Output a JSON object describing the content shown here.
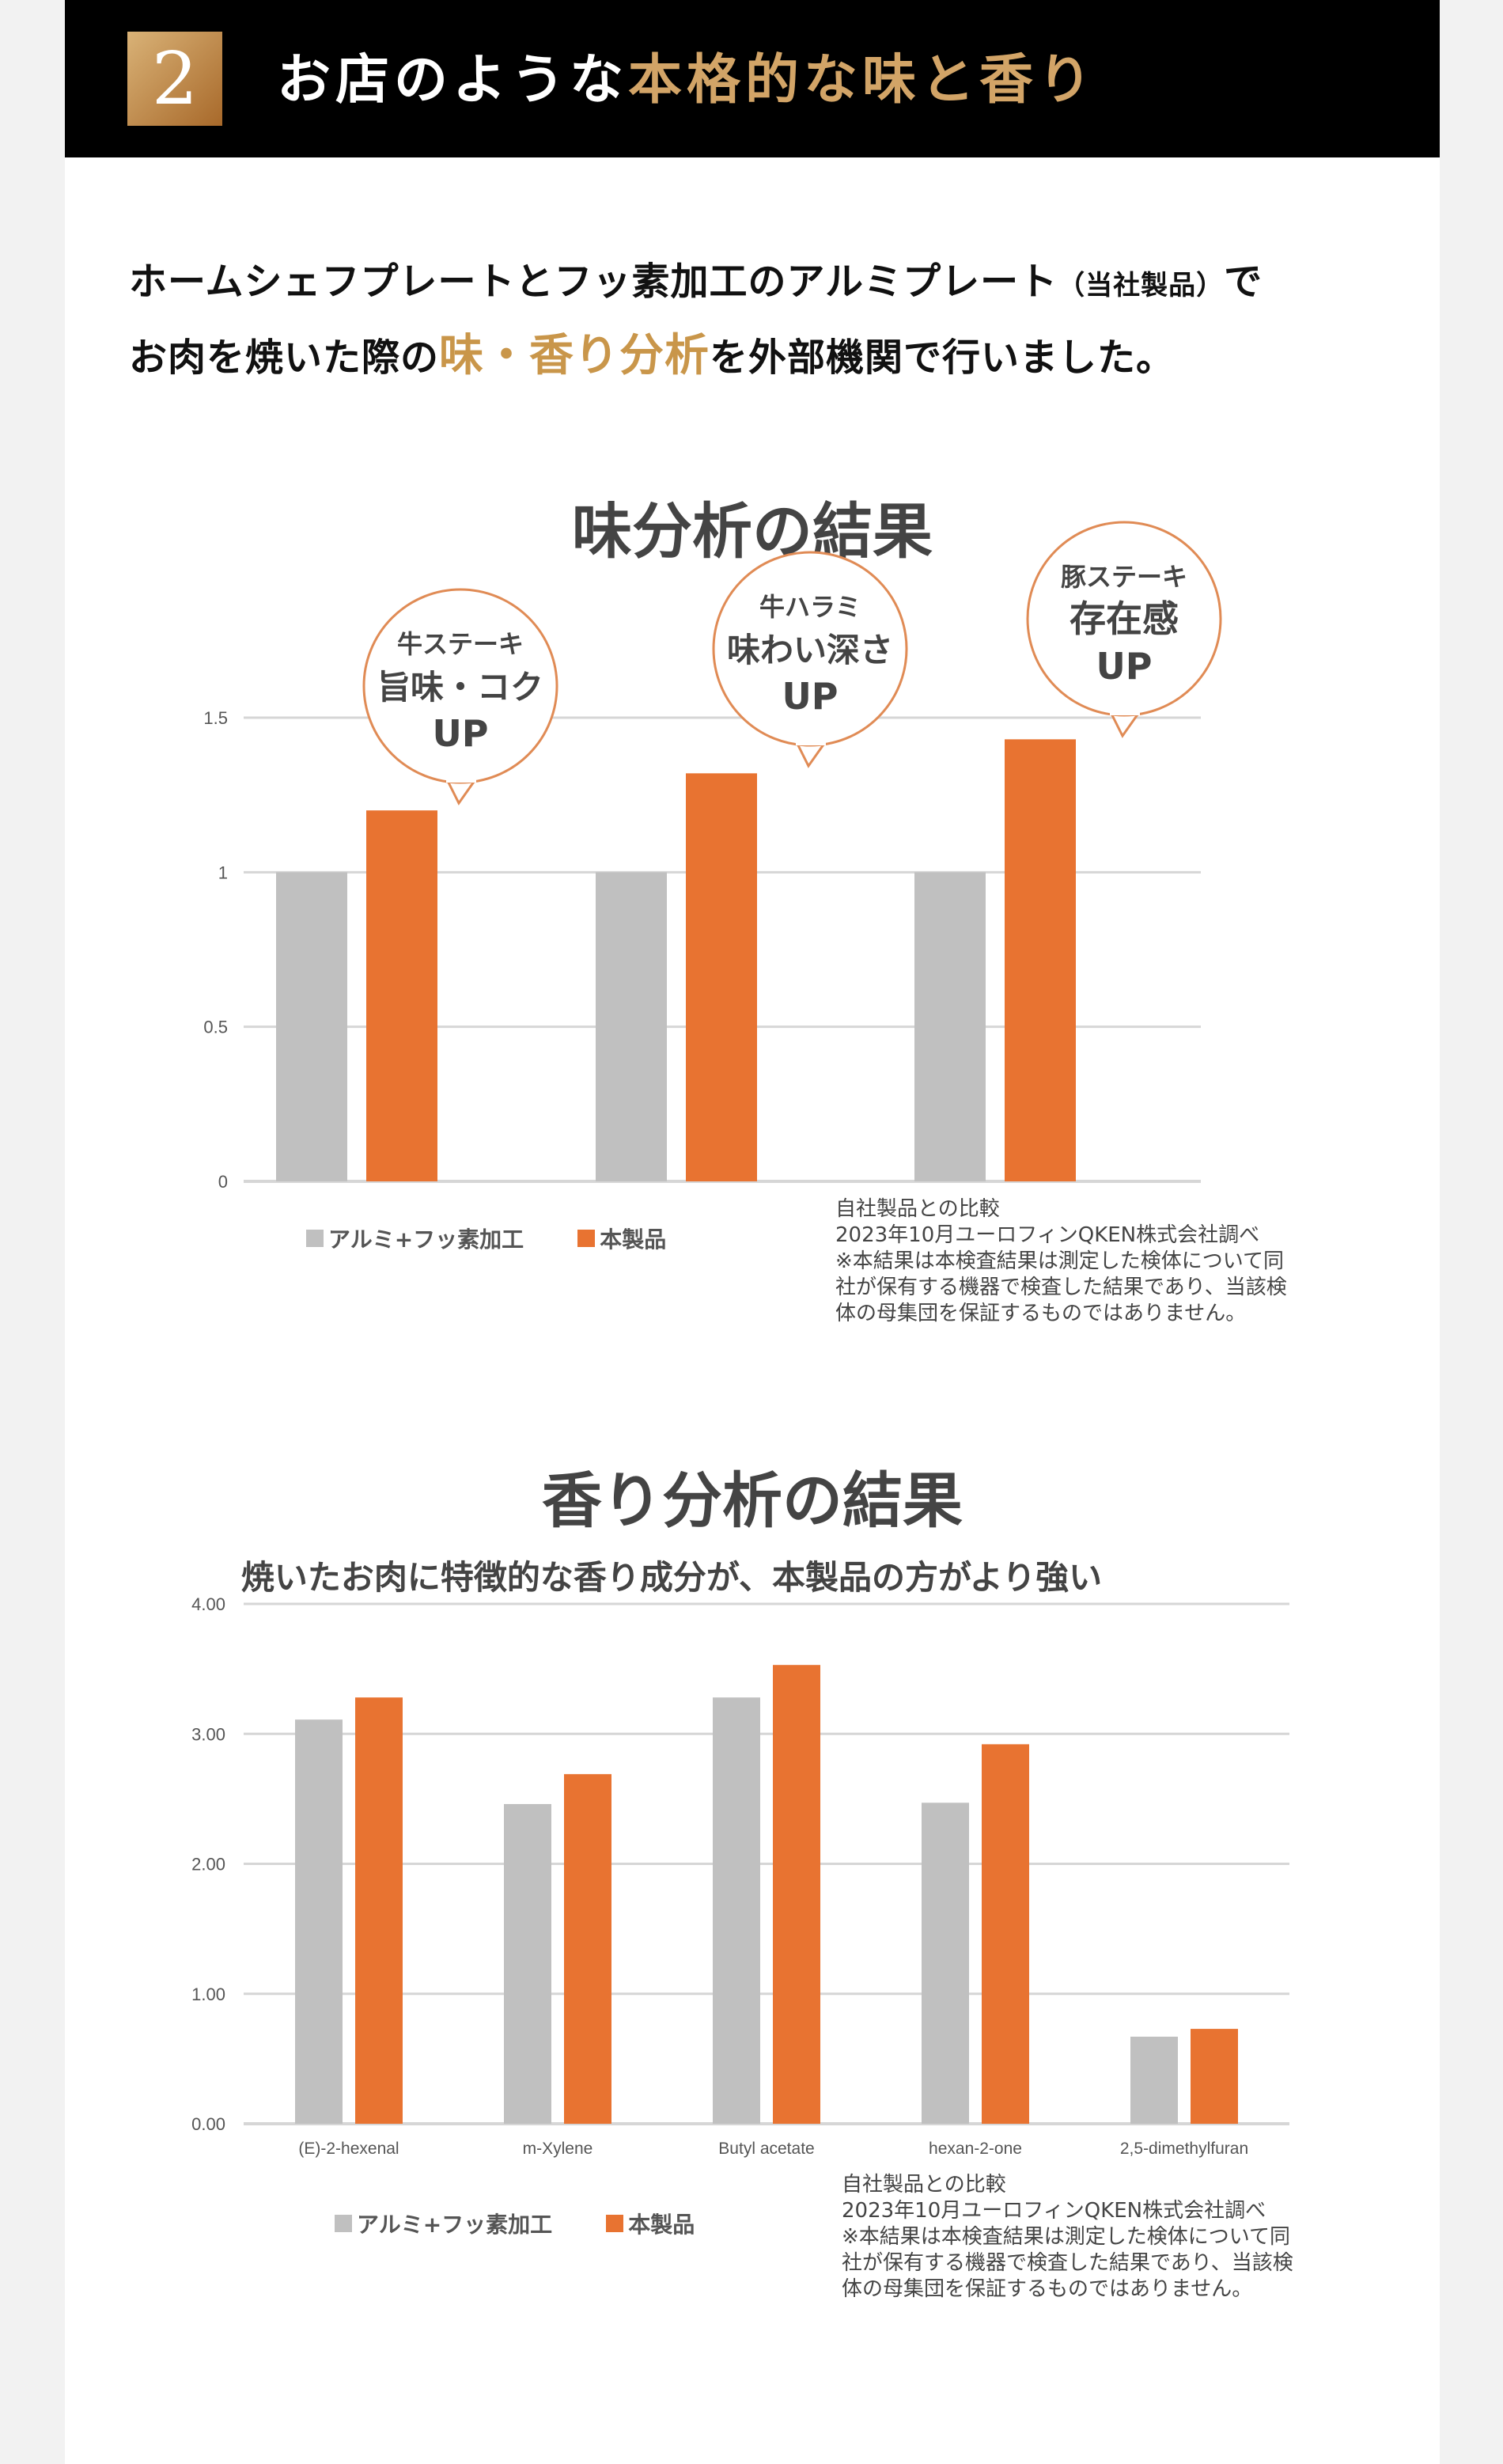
{
  "header": {
    "number": "2",
    "title_white": "お店のような",
    "title_gold": "本格的な味と香り"
  },
  "intro": {
    "line1_a": "ホームシェフプレートとフッ素加工のアルミプレート",
    "line1_small": "（当社製品）",
    "line1_b": "で",
    "line2_a": "お肉を焼いた際の",
    "line2_highlight": "味・香り分析",
    "line2_b": "を外部機関で行いました。"
  },
  "colors": {
    "gray": "#c0c0c0",
    "orange": "#e87331",
    "gold": "#d2a467"
  },
  "legend": {
    "series_a": "アルミ+フッ素加工",
    "series_b": "本製品"
  },
  "note": [
    "自社製品との比較",
    "2023年10月ユーロフィンQKEN株式会社調べ",
    "※本結果は本検査結果は測定した検体について同",
    "社が保有する機器で検査した結果であり、当該検",
    "体の母集団を保証するものではありません。"
  ],
  "bubbles": [
    {
      "top": "牛ステーキ",
      "mid": "旨味・コク",
      "bottom": "UP"
    },
    {
      "top": "牛ハラミ",
      "mid": "味わい深さ",
      "bottom": "UP"
    },
    {
      "top": "豚ステーキ",
      "mid": "存在感",
      "bottom": "UP"
    }
  ],
  "chart_data": [
    {
      "type": "bar",
      "title": "味分析の結果",
      "categories": [
        "牛ステーキ",
        "牛ハラミ",
        "豚ステーキ"
      ],
      "series": [
        {
          "name": "アルミ+フッ素加工",
          "values": [
            1.0,
            1.0,
            1.0
          ]
        },
        {
          "name": "本製品",
          "values": [
            1.2,
            1.32,
            1.43
          ]
        }
      ],
      "ylim": [
        0,
        1.5
      ],
      "yticks": [
        "0",
        "0.5",
        "1",
        "1.5"
      ],
      "grid": true,
      "legend": "bottom-left"
    },
    {
      "type": "bar",
      "title": "香り分析の結果",
      "subtitle": "焼いたお肉に特徴的な香り成分が、本製品の方がより強い",
      "categories": [
        "(E)-2-hexenal",
        "m-Xylene",
        "Butyl acetate",
        "hexan-2-one",
        "2,5-dimethylfuran"
      ],
      "series": [
        {
          "name": "アルミ+フッ素加工",
          "values": [
            3.11,
            2.46,
            3.28,
            2.47,
            0.67
          ]
        },
        {
          "name": "本製品",
          "values": [
            3.28,
            2.69,
            3.53,
            2.92,
            0.73
          ]
        }
      ],
      "ylim": [
        0,
        4
      ],
      "yticks": [
        "0.00",
        "1.00",
        "2.00",
        "3.00",
        "4.00"
      ],
      "grid": true,
      "legend": "bottom-left"
    }
  ]
}
